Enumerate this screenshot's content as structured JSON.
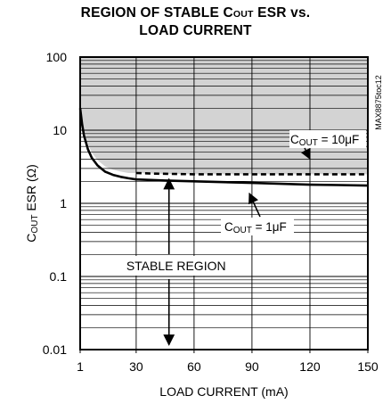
{
  "chart_data": {
    "type": "line",
    "title": {
      "line1_pre": "REGION OF STABLE C",
      "line1_sub": "OUT",
      "line1_post": " ESR vs.",
      "line2": "LOAD CURRENT"
    },
    "xlabel": "LOAD CURRENT (mA)",
    "ylabel": {
      "pre": "C",
      "sub": "OUT",
      "post": " ESR (Ω)"
    },
    "x_ticks": [
      "1",
      "30",
      "60",
      "90",
      "120",
      "150"
    ],
    "x_tick_values": [
      1,
      30,
      60,
      90,
      120,
      150
    ],
    "y_ticks": [
      "100",
      "10",
      "1",
      "0.1",
      "0.01"
    ],
    "y_tick_values": [
      100,
      10,
      1,
      0.1,
      0.01
    ],
    "xlim": [
      1,
      150
    ],
    "ylim": [
      0.01,
      100
    ],
    "yscale": "log",
    "grid": true,
    "part_number": "MAX8875toc12",
    "shaded_region": "above 10µF curve (unstable)",
    "series": [
      {
        "name": "10µF",
        "label_pre": "C",
        "label_sub": "OUT",
        "label_post": " = 10μF",
        "style": "dashed",
        "x": [
          30,
          40,
          60,
          90,
          120,
          150
        ],
        "y": [
          2.6,
          2.55,
          2.5,
          2.5,
          2.5,
          2.5
        ]
      },
      {
        "name": "1µF",
        "label_pre": "C",
        "label_sub": "OUT",
        "label_post": " = 1μF",
        "style": "solid",
        "x": [
          1,
          2,
          3,
          5,
          7,
          10,
          14,
          18,
          22,
          26,
          30,
          45,
          60,
          75,
          90,
          105,
          120,
          135,
          150
        ],
        "y": [
          20,
          12,
          8.5,
          5.5,
          4.2,
          3.3,
          2.7,
          2.45,
          2.3,
          2.2,
          2.12,
          2.05,
          2.0,
          1.95,
          1.9,
          1.85,
          1.8,
          1.78,
          1.75
        ]
      }
    ],
    "annotations": {
      "stable_region": "STABLE REGION",
      "arrow_x": 47,
      "arrow_y_top": 2.4,
      "arrow_y_bottom": 0.011
    }
  }
}
